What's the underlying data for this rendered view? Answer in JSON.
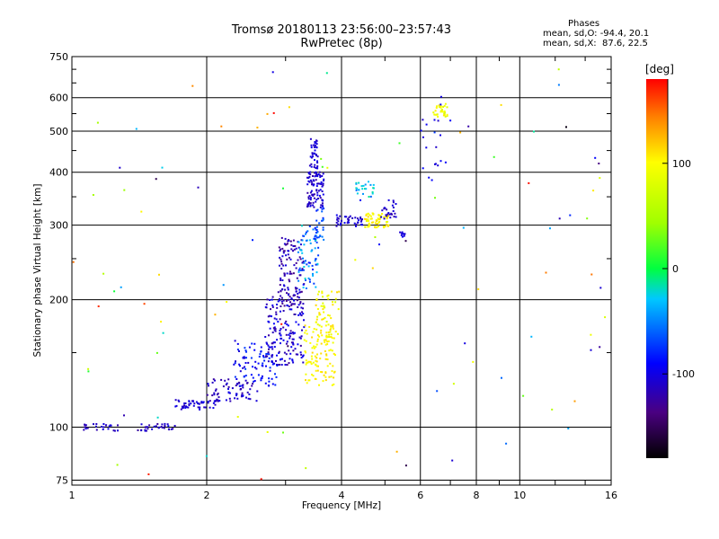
{
  "chart_data": {
    "type": "scatter",
    "title": "Tromsø 20180113 23:56:00–23:57:43",
    "subtitle": "RwPretec (8p)",
    "xlabel": "Frequency [MHz]",
    "ylabel": "Stationary phase Virtual Height [km]",
    "x_scale": "log",
    "y_scale": "log",
    "xlim": [
      1,
      16
    ],
    "ylim": [
      73,
      750
    ],
    "x_ticks": [
      "1",
      "2",
      "4",
      "6",
      "8",
      "10",
      "16"
    ],
    "y_ticks": [
      "75",
      "100",
      "200",
      "300",
      "400",
      "500",
      "600",
      "750"
    ],
    "grid": true,
    "colorbar": {
      "label": "[deg]",
      "range": [
        -180,
        180
      ],
      "ticks": [
        "100",
        "0",
        "-100"
      ]
    },
    "stats": {
      "header": "Phases",
      "line_o": "mean, sd,O: -94.4, 20.1",
      "line_x": "mean, sd,X:  87.6, 22.5"
    },
    "clusters": [
      {
        "x": [
          1.05,
          1.3
        ],
        "y": [
          98,
          102
        ],
        "phase": [
          -120,
          -100
        ],
        "n": 25
      },
      {
        "x": [
          1.4,
          1.7
        ],
        "y": [
          98,
          102
        ],
        "phase": [
          -125,
          -100
        ],
        "n": 30
      },
      {
        "x": [
          1.7,
          2.1
        ],
        "y": [
          110,
          116
        ],
        "phase": [
          -120,
          -95
        ],
        "n": 50
      },
      {
        "x": [
          2.0,
          2.6
        ],
        "y": [
          115,
          130
        ],
        "phase": [
          -125,
          -95
        ],
        "n": 70
      },
      {
        "x": [
          2.3,
          2.9
        ],
        "y": [
          125,
          160
        ],
        "phase": [
          -110,
          -70
        ],
        "n": 90
      },
      {
        "x": [
          2.7,
          3.3
        ],
        "y": [
          140,
          210
        ],
        "phase": [
          -130,
          -90
        ],
        "n": 160
      },
      {
        "x": [
          2.9,
          3.3
        ],
        "y": [
          190,
          280
        ],
        "phase": [
          -135,
          -100
        ],
        "n": 110
      },
      {
        "x": [
          3.2,
          3.55
        ],
        "y": [
          210,
          300
        ],
        "phase": [
          -90,
          -20
        ],
        "n": 70
      },
      {
        "x": [
          3.3,
          3.9
        ],
        "y": [
          125,
          175
        ],
        "phase": [
          90,
          115
        ],
        "n": 110
      },
      {
        "x": [
          3.5,
          3.95
        ],
        "y": [
          160,
          210
        ],
        "phase": [
          80,
          115
        ],
        "n": 60
      },
      {
        "x": [
          3.35,
          3.65
        ],
        "y": [
          330,
          400
        ],
        "phase": [
          -125,
          -95
        ],
        "n": 90
      },
      {
        "x": [
          3.4,
          3.55
        ],
        "y": [
          400,
          480
        ],
        "phase": [
          -115,
          -95
        ],
        "n": 40
      },
      {
        "x": [
          3.5,
          3.65
        ],
        "y": [
          270,
          330
        ],
        "phase": [
          -85,
          -50
        ],
        "n": 25
      },
      {
        "x": [
          3.9,
          4.5
        ],
        "y": [
          298,
          318
        ],
        "phase": [
          -120,
          -95
        ],
        "n": 40
      },
      {
        "x": [
          4.5,
          5.1
        ],
        "y": [
          296,
          320
        ],
        "phase": [
          85,
          115
        ],
        "n": 60
      },
      {
        "x": [
          4.3,
          4.8
        ],
        "y": [
          350,
          380
        ],
        "phase": [
          -60,
          -10
        ],
        "n": 25
      },
      {
        "x": [
          4.9,
          5.3
        ],
        "y": [
          310,
          350
        ],
        "phase": [
          -120,
          -95
        ],
        "n": 25
      },
      {
        "x": [
          5.4,
          5.6
        ],
        "y": [
          280,
          290
        ],
        "phase": [
          -110,
          -95
        ],
        "n": 10
      },
      {
        "x": [
          6.4,
          6.9
        ],
        "y": [
          540,
          580
        ],
        "phase": [
          75,
          110
        ],
        "n": 30
      },
      {
        "x": [
          6.0,
          7.0
        ],
        "y": [
          380,
          620
        ],
        "phase": [
          -110,
          -90
        ],
        "n": 20
      },
      {
        "x": [
          1.0,
          16.0
        ],
        "y": [
          75,
          700
        ],
        "phase": [
          -180,
          180
        ],
        "n": 100
      }
    ]
  }
}
